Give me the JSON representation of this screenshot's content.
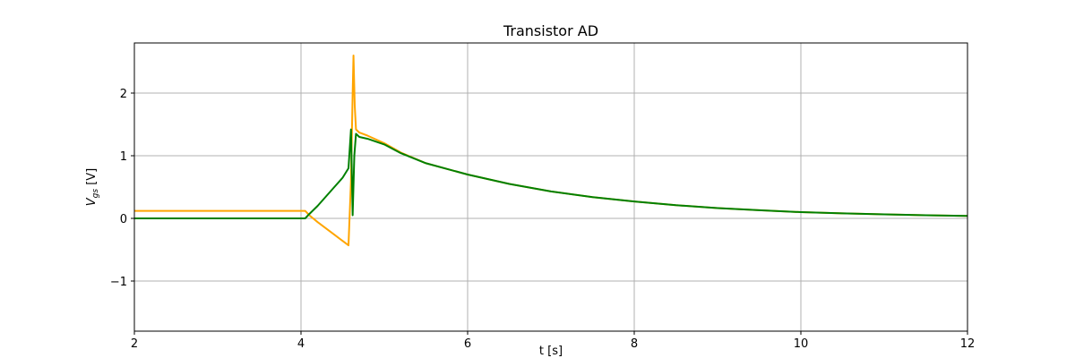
{
  "chart_data": {
    "type": "line",
    "title": "Transistor AD",
    "xlabel": "t [s]",
    "ylabel_main": "V",
    "ylabel_sub": "gs",
    "ylabel_unit": " [V]",
    "xlim": [
      2,
      12
    ],
    "ylim": [
      -1.8,
      2.8
    ],
    "xticks": [
      2,
      4,
      6,
      8,
      10,
      12
    ],
    "yticks": [
      -1,
      0,
      1,
      2
    ],
    "xtick_labels": [
      "2",
      "4",
      "6",
      "8",
      "10",
      "12"
    ],
    "ytick_labels": [
      "−1",
      "0",
      "1",
      "2"
    ],
    "grid": true,
    "series": [
      {
        "color": "#ffa500",
        "points": [
          [
            2.0,
            0.12
          ],
          [
            4.05,
            0.12
          ],
          [
            4.1,
            0.05
          ],
          [
            4.2,
            -0.06
          ],
          [
            4.3,
            -0.16
          ],
          [
            4.4,
            -0.26
          ],
          [
            4.5,
            -0.36
          ],
          [
            4.57,
            -0.43
          ],
          [
            4.6,
            0.6
          ],
          [
            4.62,
            2.0
          ],
          [
            4.63,
            2.6
          ],
          [
            4.645,
            1.8
          ],
          [
            4.66,
            1.42
          ],
          [
            4.7,
            1.37
          ],
          [
            4.8,
            1.32
          ],
          [
            5.0,
            1.2
          ],
          [
            5.2,
            1.05
          ],
          [
            5.5,
            0.88
          ],
          [
            6.0,
            0.7
          ],
          [
            6.5,
            0.55
          ],
          [
            7.0,
            0.43
          ],
          [
            7.5,
            0.34
          ],
          [
            8.0,
            0.27
          ],
          [
            8.5,
            0.21
          ],
          [
            9.0,
            0.165
          ],
          [
            9.5,
            0.13
          ],
          [
            10.0,
            0.1
          ],
          [
            10.5,
            0.08
          ],
          [
            11.0,
            0.065
          ],
          [
            11.5,
            0.05
          ],
          [
            12.0,
            0.04
          ]
        ]
      },
      {
        "color": "#008000",
        "points": [
          [
            2.0,
            0.0
          ],
          [
            4.05,
            0.0
          ],
          [
            4.1,
            0.07
          ],
          [
            4.2,
            0.2
          ],
          [
            4.3,
            0.35
          ],
          [
            4.4,
            0.5
          ],
          [
            4.5,
            0.65
          ],
          [
            4.57,
            0.8
          ],
          [
            4.6,
            1.42
          ],
          [
            4.62,
            0.05
          ],
          [
            4.64,
            1.0
          ],
          [
            4.66,
            1.35
          ],
          [
            4.7,
            1.3
          ],
          [
            4.8,
            1.27
          ],
          [
            5.0,
            1.18
          ],
          [
            5.2,
            1.04
          ],
          [
            5.5,
            0.88
          ],
          [
            6.0,
            0.7
          ],
          [
            6.5,
            0.55
          ],
          [
            7.0,
            0.43
          ],
          [
            7.5,
            0.34
          ],
          [
            8.0,
            0.27
          ],
          [
            8.5,
            0.21
          ],
          [
            9.0,
            0.165
          ],
          [
            9.5,
            0.13
          ],
          [
            10.0,
            0.1
          ],
          [
            10.5,
            0.08
          ],
          [
            11.0,
            0.065
          ],
          [
            11.5,
            0.05
          ],
          [
            12.0,
            0.04
          ]
        ]
      }
    ]
  }
}
